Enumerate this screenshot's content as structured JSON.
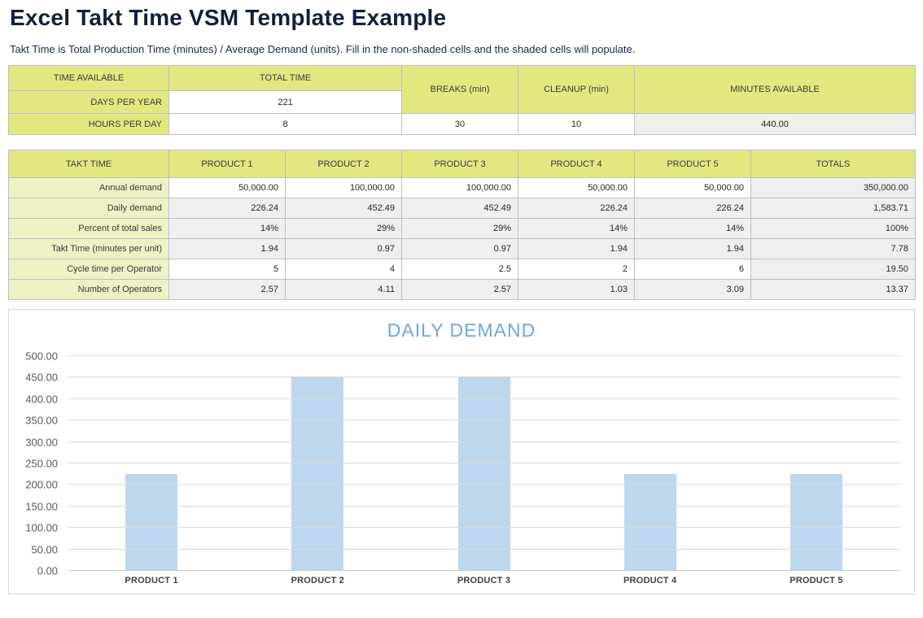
{
  "page": {
    "title": "Excel Takt Time VSM Template Example",
    "subtitle": "Takt Time is Total Production Time (minutes) / Average Demand (units). Fill in the non-shaded cells and the shaded cells will populate."
  },
  "time_table": {
    "headers": {
      "time_available": "TIME AVAILABLE",
      "total_time": "TOTAL TIME",
      "breaks": "BREAKS (min)",
      "cleanup": "CLEANUP (min)",
      "minutes_available": "MINUTES AVAILABLE"
    },
    "days_per_year": {
      "label": "DAYS PER YEAR",
      "value": "221"
    },
    "hours_per_day": {
      "label": "HOURS PER DAY",
      "value": "8"
    },
    "breaks_value": "30",
    "cleanup_value": "10",
    "minutes_available_value": "440.00"
  },
  "takt_table": {
    "headers": [
      "TAKT TIME",
      "PRODUCT 1",
      "PRODUCT 2",
      "PRODUCT 3",
      "PRODUCT 4",
      "PRODUCT 5",
      "TOTALS"
    ],
    "rows": [
      {
        "label": "Annual demand",
        "values": [
          "50,000.00",
          "100,000.00",
          "100,000.00",
          "50,000.00",
          "50,000.00"
        ],
        "total": "350,000.00",
        "editable": true
      },
      {
        "label": "Daily demand",
        "values": [
          "226.24",
          "452.49",
          "452.49",
          "226.24",
          "226.24"
        ],
        "total": "1,583.71",
        "editable": false
      },
      {
        "label": "Percent of total sales",
        "values": [
          "14%",
          "29%",
          "29%",
          "14%",
          "14%"
        ],
        "total": "100%",
        "editable": false
      },
      {
        "label": "Takt Time (minutes per unit)",
        "values": [
          "1.94",
          "0.97",
          "0.97",
          "1.94",
          "1.94"
        ],
        "total": "7.78",
        "editable": false
      },
      {
        "label": "Cycle time per Operator",
        "values": [
          "5",
          "4",
          "2.5",
          "2",
          "6"
        ],
        "total": "19.50",
        "editable": true
      },
      {
        "label": "Number of Operators",
        "values": [
          "2.57",
          "4.11",
          "2.57",
          "1.03",
          "3.09"
        ],
        "total": "13.37",
        "editable": false
      }
    ]
  },
  "chart_data": {
    "type": "bar",
    "title": "DAILY DEMAND",
    "categories": [
      "PRODUCT 1",
      "PRODUCT 2",
      "PRODUCT 3",
      "PRODUCT 4",
      "PRODUCT 5"
    ],
    "values": [
      226.24,
      452.49,
      452.49,
      226.24,
      226.24
    ],
    "ylim": [
      0,
      500
    ],
    "ytick_step": 50,
    "ytick_labels": [
      "0.00",
      "50.00",
      "100.00",
      "150.00",
      "200.00",
      "250.00",
      "300.00",
      "350.00",
      "400.00",
      "450.00",
      "500.00"
    ],
    "grid": true,
    "legend": "none",
    "bar_color": "#bdd7ee",
    "title_color": "#6fa8dc"
  },
  "colors": {
    "header_green": "#e2e87f",
    "label_light_green": "#eef1c4",
    "shaded_cell": "#efefef",
    "grid_border": "#bfbfbf",
    "title_navy": "#121f3d",
    "chart_title_blue": "#6fa8dc",
    "bar_blue": "#bdd7ee",
    "gridline_gray": "#d9d9d9",
    "axis_text_gray": "#595959"
  }
}
